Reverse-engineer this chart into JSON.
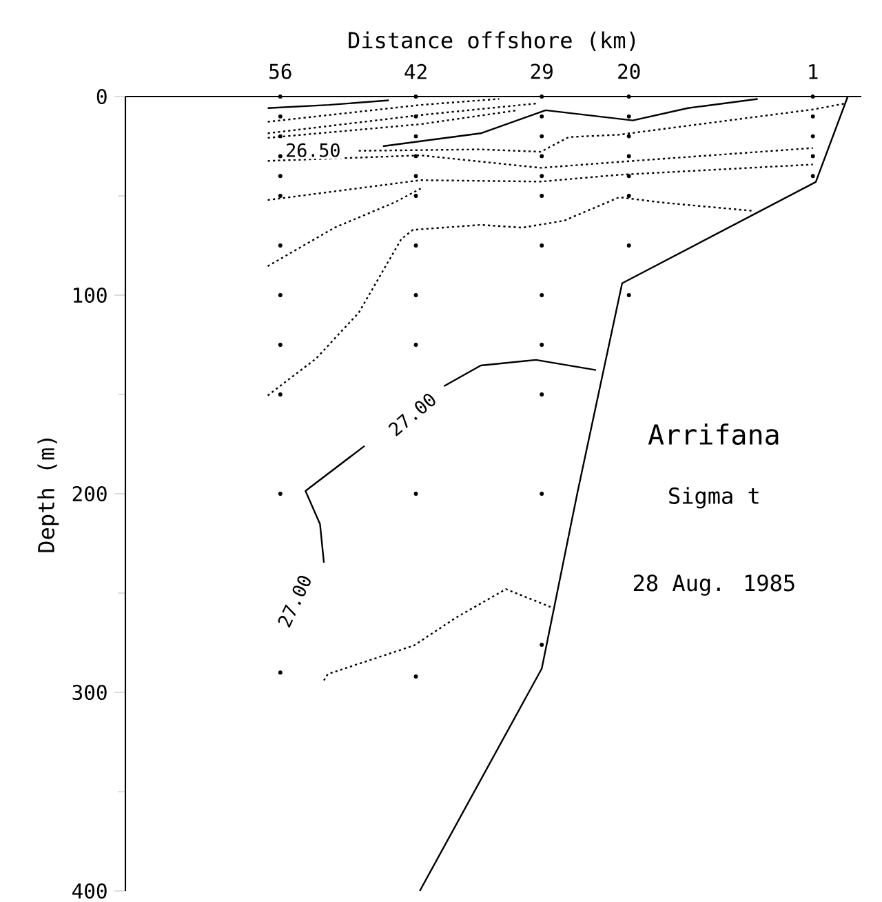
{
  "chart_data": {
    "type": "line",
    "xlabel": "Distance offshore (km)",
    "ylabel": "Depth (m)",
    "xlim": [
      72,
      -4
    ],
    "ylim": [
      400,
      0
    ],
    "xticks": [
      56,
      42,
      29,
      20,
      1
    ],
    "yticks": [
      0,
      100,
      200,
      300,
      400
    ],
    "series": [
      {
        "color": "#000000",
        "line_style": "solid",
        "x": [
          57.3,
          51,
          44.8
        ],
        "values": [
          5.8,
          4.2,
          1.9
        ]
      },
      {
        "color": "#000000",
        "line_style": "solid",
        "x": [
          45.4,
          35.3,
          28.6,
          19.6,
          13.9,
          6.7
        ],
        "values": [
          25,
          18.5,
          6.9,
          12,
          5.8,
          1.2
        ]
      },
      {
        "color": "#000000",
        "line_style": "dotted",
        "x": [
          57.3,
          41.5,
          33.4
        ],
        "values": [
          12.7,
          4.2,
          1.2
        ]
      },
      {
        "color": "#000000",
        "line_style": "dotted",
        "x": [
          57.3,
          41.5,
          29.6
        ],
        "values": [
          18.5,
          9.3,
          3.5
        ]
      },
      {
        "color": "#000000",
        "line_style": "dotted",
        "x": [
          57.3,
          41.5,
          31.5
        ],
        "values": [
          20.8,
          13.9,
          6.9
        ]
      },
      {
        "color": "#000000",
        "line_style": "dotted",
        "x": [
          47.9,
          35.3,
          29.1,
          26.2,
          21,
          1,
          -2.3
        ],
        "values": [
          27.3,
          26.6,
          27.8,
          20.4,
          19.2,
          6.5,
          3.5
        ]
      },
      {
        "color": "#000000",
        "line_style": "dotted",
        "x": [
          57.3,
          41.5,
          29.1,
          21,
          1
        ],
        "values": [
          32.4,
          29.6,
          35.9,
          32.9,
          25.9
        ]
      },
      {
        "color": "#000000",
        "line_style": "dotted",
        "x": [
          57.3,
          41.5,
          29.1,
          21,
          1
        ],
        "values": [
          52.1,
          42.1,
          42.8,
          39.4,
          34.2
        ]
      },
      {
        "color": "#000000",
        "line_style": "dotted",
        "x": [
          57.3,
          50.4,
          44.2,
          41.5
        ],
        "values": [
          85.4,
          66,
          53.3,
          46.3
        ]
      },
      {
        "color": "#000000",
        "line_style": "dotted",
        "x": [
          57.3,
          52.3,
          47.9,
          43.5,
          42.3,
          35.3,
          31,
          26.7,
          21,
          16.3,
          7.1
        ],
        "values": [
          150.5,
          131.9,
          108.8,
          71.7,
          67.1,
          64.6,
          66,
          62.5,
          50.7,
          53.5,
          57.6
        ]
      },
      {
        "color": "#000000",
        "line_style": "solid",
        "x": [
          51.5,
          51.9,
          53.4,
          52.9,
          47.3,
          42.4,
          39.1,
          35.3,
          29.6,
          23.4
        ],
        "values": [
          234.7,
          215.3,
          198.6,
          196.7,
          175.9,
          null,
          145.8,
          135.4,
          132.6,
          137.7
        ]
      },
      {
        "color": "#000000",
        "line_style": "dotted",
        "x": [
          51.5,
          51.1,
          42.2,
          37.9,
          32.7,
          28.1
        ],
        "values": [
          294,
          290.8,
          276.4,
          262.5,
          248,
          257
        ]
      },
      {
        "color": "#000000",
        "line_style": "solid",
        "x": [
          -2.6,
          0.7,
          20.7,
          25.3,
          29,
          41.6
        ],
        "values": [
          0,
          43,
          94,
          199,
          288,
          400
        ]
      },
      {
        "type": "scatter",
        "marker": "circle",
        "color": "#000000",
        "x": [
          56,
          56,
          56,
          56,
          56,
          56,
          56,
          56,
          56,
          56,
          56,
          56,
          42,
          42,
          42,
          42,
          42,
          42,
          42,
          42,
          42,
          42,
          42,
          29,
          29,
          29,
          29,
          29,
          29,
          29,
          29,
          29,
          29,
          29,
          29,
          20,
          20,
          20,
          20,
          20,
          20,
          20,
          20,
          1,
          1,
          1,
          1,
          1
        ],
        "values": [
          0,
          10,
          20,
          30,
          40,
          50,
          75,
          100,
          125,
          150,
          200,
          290,
          0,
          10,
          20,
          30,
          40,
          50,
          75,
          100,
          125,
          200,
          292,
          0,
          10,
          20,
          30,
          40,
          50,
          75,
          100,
          125,
          150,
          200,
          276,
          0,
          10,
          20,
          30,
          40,
          50,
          75,
          100,
          0,
          10,
          20,
          30,
          40
        ]
      }
    ],
    "annotations": [
      "26.50",
      "27.00",
      "27.00",
      "Arrifana",
      "Sigma t",
      "28 Aug. 1985"
    ]
  }
}
